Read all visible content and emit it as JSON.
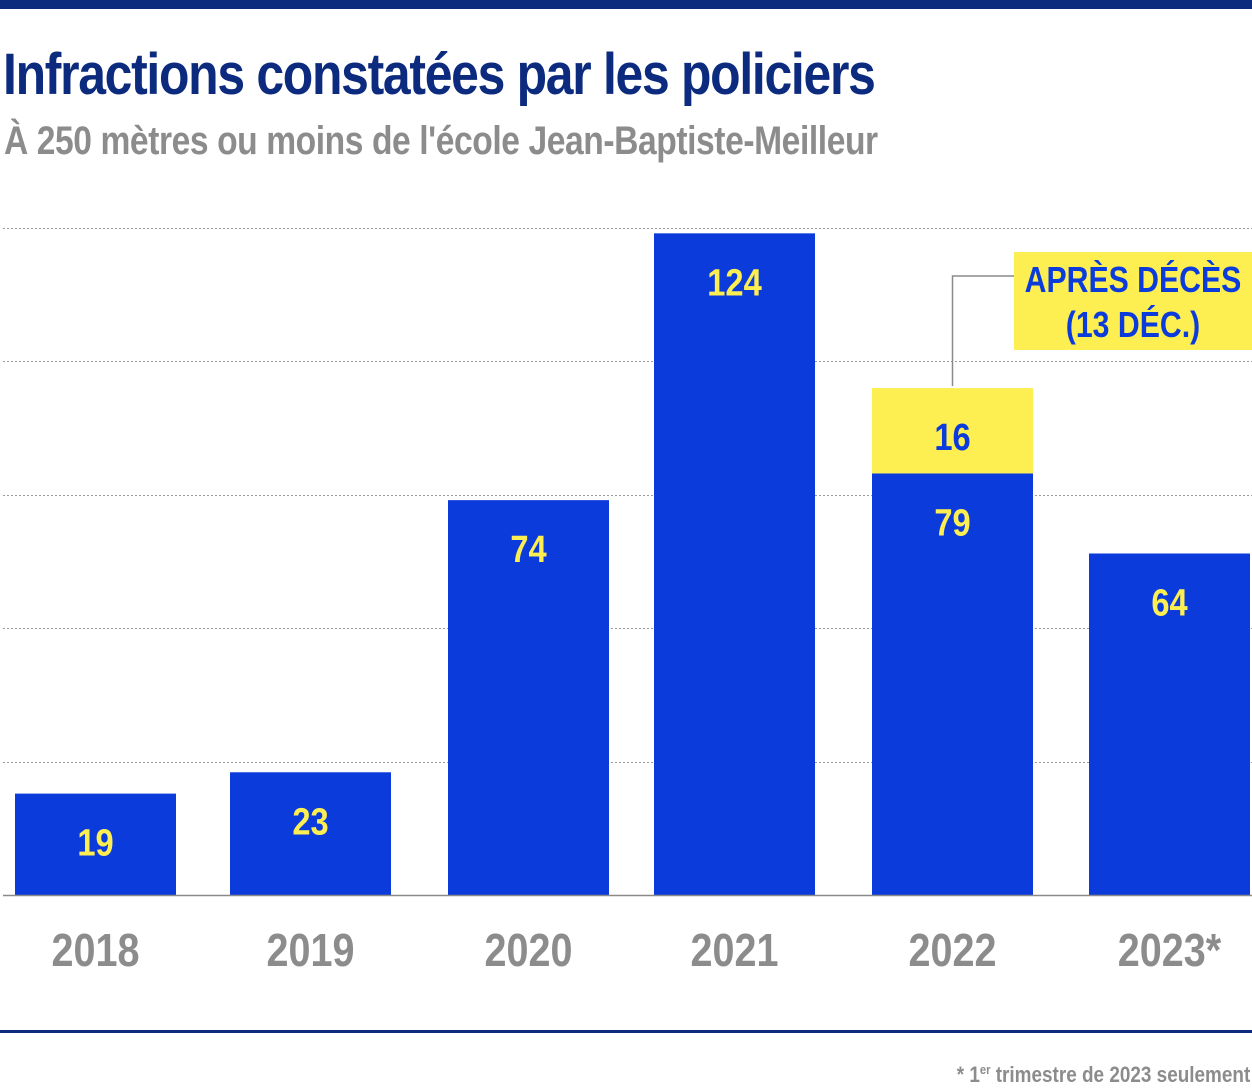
{
  "header": {
    "title": "Infractions constatées par les policiers",
    "subtitle": "À 250 mètres ou moins de l'école Jean-Baptiste-Meilleur"
  },
  "colors": {
    "bar_blue": "#0b3bdb",
    "highlight_yellow": "#fdee52",
    "label_yellow": "#fdee52",
    "label_blue": "#0b3bdb",
    "axis_text": "#8c8c8c",
    "rule_navy": "#0c2a7e",
    "grid": "#9a9a9a"
  },
  "chart_data": {
    "type": "bar",
    "stacked": true,
    "title": "Infractions constatées par les policiers",
    "subtitle": "À 250 mètres ou moins de l'école Jean-Baptiste-Meilleur",
    "xlabel": "",
    "ylabel": "",
    "categories": [
      "2018",
      "2019",
      "2020",
      "2021",
      "2022",
      "2023*"
    ],
    "series": [
      {
        "name": "Infractions",
        "values": [
          19,
          23,
          74,
          124,
          79,
          64
        ]
      },
      {
        "name": "Après décès",
        "values": [
          0,
          0,
          0,
          0,
          16,
          0
        ]
      }
    ],
    "ylim": [
      0,
      125
    ],
    "gridlines": [
      25,
      50,
      75,
      100,
      125
    ],
    "grid": true,
    "annotation": {
      "category": "2022",
      "series": "Après décès",
      "line1": "APRÈS DÉCÈS",
      "line2": "(13 DÉC.)"
    }
  },
  "footnote": {
    "marker": "* 1",
    "superscript": "er",
    "text": " trimestre de 2023 seulement"
  }
}
